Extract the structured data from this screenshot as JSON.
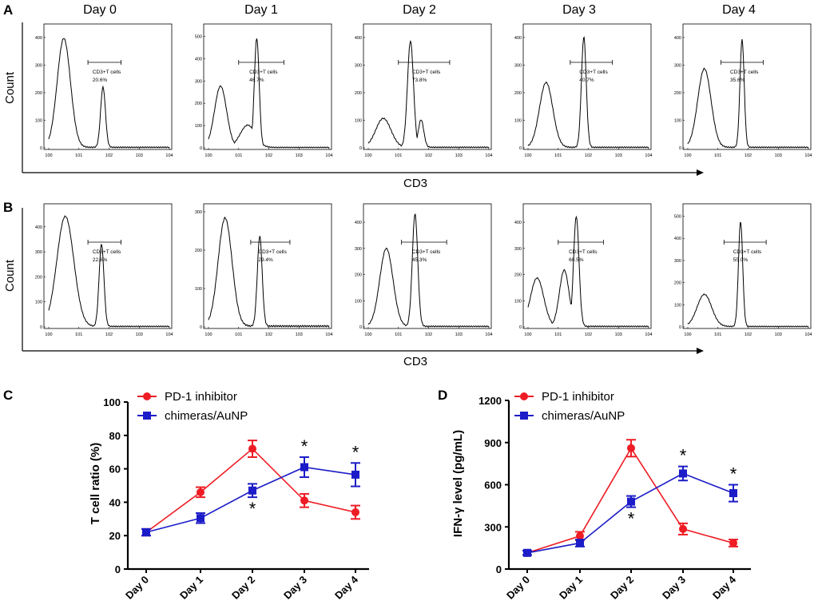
{
  "chart_data": [
    {
      "type": "histogram-grid",
      "panel": "A",
      "xlabel": "CD3",
      "ylabel": "Count",
      "x_ticks": [
        "10^0",
        "10^1",
        "10^2",
        "10^3",
        "10^4"
      ],
      "gate_label": "CD3+T cells",
      "histograms": [
        {
          "day": "Day 0",
          "yticks": [
            "0",
            "100",
            "200",
            "300",
            "400"
          ],
          "ymax": 420,
          "peaks": [
            {
              "logx": 0.5,
              "height": 395,
              "width": 0.22
            },
            {
              "logx": 1.8,
              "height": 218,
              "width": 0.08
            }
          ],
          "gate": [
            1.3,
            2.4
          ],
          "percent": "20.6%"
        },
        {
          "day": "Day 1",
          "yticks": [
            "0",
            "100",
            "200",
            "300",
            "400",
            "500"
          ],
          "ymax": 520,
          "peaks": [
            {
              "logx": 0.4,
              "height": 275,
              "width": 0.2
            },
            {
              "logx": 1.3,
              "height": 100,
              "width": 0.25
            },
            {
              "logx": 1.6,
              "height": 490,
              "width": 0.08
            }
          ],
          "gate": [
            1.0,
            2.5
          ],
          "percent": "46.7%"
        },
        {
          "day": "Day 2",
          "yticks": [
            "0",
            "100",
            "200",
            "300",
            "400"
          ],
          "ymax": 420,
          "peaks": [
            {
              "logx": 0.5,
              "height": 105,
              "width": 0.25
            },
            {
              "logx": 1.4,
              "height": 385,
              "width": 0.1
            },
            {
              "logx": 1.75,
              "height": 100,
              "width": 0.09
            }
          ],
          "gate": [
            1.0,
            2.7
          ],
          "percent": "73.8%"
        },
        {
          "day": "Day 3",
          "yticks": [
            "0",
            "100",
            "200",
            "300",
            "400"
          ],
          "ymax": 420,
          "peaks": [
            {
              "logx": 0.6,
              "height": 235,
              "width": 0.22
            },
            {
              "logx": 1.85,
              "height": 400,
              "width": 0.08
            }
          ],
          "gate": [
            1.4,
            2.8
          ],
          "percent": "40.7%"
        },
        {
          "day": "Day 4",
          "yticks": [
            "0",
            "100",
            "200",
            "300",
            "400"
          ],
          "ymax": 420,
          "peaks": [
            {
              "logx": 0.55,
              "height": 285,
              "width": 0.22
            },
            {
              "logx": 1.8,
              "height": 390,
              "width": 0.07
            }
          ],
          "gate": [
            1.1,
            2.5
          ],
          "percent": "35.6%"
        }
      ]
    },
    {
      "type": "histogram-grid",
      "panel": "B",
      "xlabel": "CD3",
      "ylabel": "Count",
      "x_ticks": [
        "10^0",
        "10^1",
        "10^2",
        "10^3",
        "10^4"
      ],
      "gate_label": "CD3+T cells",
      "histograms": [
        {
          "day": "Day 0",
          "yticks": [
            "0",
            "100",
            "200",
            "300",
            "400"
          ],
          "ymax": 460,
          "peaks": [
            {
              "logx": 0.55,
              "height": 440,
              "width": 0.28
            },
            {
              "logx": 1.75,
              "height": 330,
              "width": 0.08
            }
          ],
          "gate": [
            1.3,
            2.4
          ],
          "percent": "22.6%"
        },
        {
          "day": "Day 1",
          "yticks": [
            "0",
            "100",
            "200",
            "300"
          ],
          "ymax": 300,
          "peaks": [
            {
              "logx": 0.55,
              "height": 282,
              "width": 0.23
            },
            {
              "logx": 1.7,
              "height": 235,
              "width": 0.08
            }
          ],
          "gate": [
            1.4,
            2.7
          ],
          "percent": "29.4%"
        },
        {
          "day": "Day 2",
          "yticks": [
            "0",
            "100",
            "200",
            "300",
            "400"
          ],
          "ymax": 440,
          "peaks": [
            {
              "logx": 0.6,
              "height": 298,
              "width": 0.22
            },
            {
              "logx": 1.55,
              "height": 430,
              "width": 0.09
            }
          ],
          "gate": [
            1.1,
            2.6
          ],
          "percent": "45.3%"
        },
        {
          "day": "Day 3",
          "yticks": [
            "0",
            "100",
            "200",
            "300",
            "400"
          ],
          "ymax": 440,
          "peaks": [
            {
              "logx": 0.3,
              "height": 185,
              "width": 0.22
            },
            {
              "logx": 1.2,
              "height": 215,
              "width": 0.16
            },
            {
              "logx": 1.6,
              "height": 420,
              "width": 0.09
            }
          ],
          "gate": [
            1.0,
            2.5
          ],
          "percent": "60.5%"
        },
        {
          "day": "Day 4",
          "yticks": [
            "0",
            "100",
            "200",
            "300",
            "400",
            "500"
          ],
          "ymax": 520,
          "peaks": [
            {
              "logx": 0.55,
              "height": 145,
              "width": 0.24
            },
            {
              "logx": 1.75,
              "height": 475,
              "width": 0.07
            }
          ],
          "gate": [
            1.2,
            2.6
          ],
          "percent": "55.0%"
        }
      ]
    },
    {
      "type": "line",
      "panel": "C",
      "categories": [
        "Day 0",
        "Day 1",
        "Day 2",
        "Day 3",
        "Day 4"
      ],
      "ylabel": "T cell ratio (%)",
      "ylim": [
        0,
        100
      ],
      "yticks": [
        "0",
        "20",
        "40",
        "60",
        "80",
        "100"
      ],
      "series": [
        {
          "name": "PD-1 inhibitor",
          "color": "#ee1c24",
          "marker": "circle",
          "values": [
            22,
            46,
            72,
            41,
            34
          ],
          "errors": [
            2,
            3,
            5,
            4,
            4
          ]
        },
        {
          "name": "chimeras/AuNP",
          "color": "#1c1cc8",
          "marker": "square",
          "values": [
            22,
            30.5,
            47,
            61,
            56.5
          ],
          "errors": [
            2,
            3,
            4,
            6,
            7
          ]
        }
      ],
      "significance": [
        {
          "category": "Day 2",
          "position": "below",
          "label": "*"
        },
        {
          "category": "Day 3",
          "position": "above",
          "label": "*"
        },
        {
          "category": "Day 4",
          "position": "above",
          "label": "*"
        }
      ]
    },
    {
      "type": "line",
      "panel": "D",
      "categories": [
        "Day 0",
        "Day 1",
        "Day 2",
        "Day 3",
        "Day 4"
      ],
      "ylabel": "IFN-γ level (pg/mL)",
      "ylim": [
        0,
        1200
      ],
      "yticks": [
        "0",
        "300",
        "600",
        "900",
        "1200"
      ],
      "series": [
        {
          "name": "PD-1 inhibitor",
          "color": "#ee1c24",
          "marker": "circle",
          "values": [
            115,
            235,
            860,
            285,
            185
          ],
          "errors": [
            15,
            30,
            60,
            40,
            25
          ]
        },
        {
          "name": "chimeras/AuNP",
          "color": "#1c1cc8",
          "marker": "square",
          "values": [
            115,
            185,
            480,
            680,
            540
          ],
          "errors": [
            15,
            25,
            40,
            50,
            60
          ]
        }
      ],
      "significance": [
        {
          "category": "Day 2",
          "position": "below",
          "label": "*"
        },
        {
          "category": "Day 3",
          "position": "above",
          "label": "*"
        },
        {
          "category": "Day 4",
          "position": "above",
          "label": "*"
        }
      ]
    }
  ]
}
